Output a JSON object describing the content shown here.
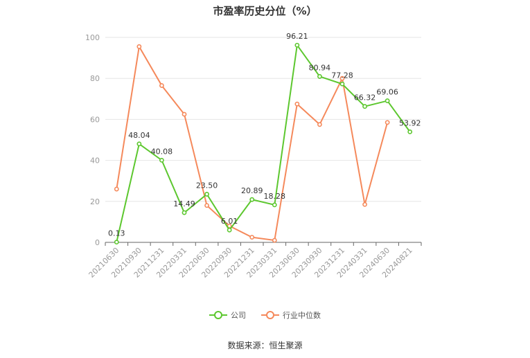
{
  "title": "市盈率历史分位（%）",
  "source": "数据来源：恒生聚源",
  "colors": {
    "company": "#5cc72e",
    "industry": "#f5895b",
    "grid": "#e6e6e6",
    "axis": "#999999"
  },
  "chart_data": {
    "type": "line",
    "categories": [
      "20210630",
      "20210930",
      "20211231",
      "20220331",
      "20220630",
      "20220930",
      "20221231",
      "20230331",
      "20230630",
      "20230930",
      "20231231",
      "20240331",
      "20240630",
      "20240821"
    ],
    "ylim": [
      0,
      100
    ],
    "yticks": [
      0,
      20,
      40,
      60,
      80,
      100
    ],
    "legend_position": "bottom",
    "series": [
      {
        "name": "公司",
        "values": [
          0.13,
          48.04,
          40.08,
          14.49,
          23.5,
          6.01,
          20.89,
          18.28,
          96.21,
          80.94,
          77.28,
          66.32,
          69.06,
          53.92
        ],
        "labels": [
          "0.13",
          "48.04",
          "40.08",
          "14.49",
          "23.50",
          "6.01",
          "20.89",
          "18.28",
          "96.21",
          "80.94",
          "77.28",
          "66.32",
          "69.06",
          "53.92"
        ]
      },
      {
        "name": "行业中位数",
        "values": [
          26,
          95.5,
          76.5,
          62.5,
          18,
          8,
          2.5,
          1,
          67.5,
          57.5,
          80,
          18.5,
          58.5,
          null
        ]
      }
    ]
  }
}
